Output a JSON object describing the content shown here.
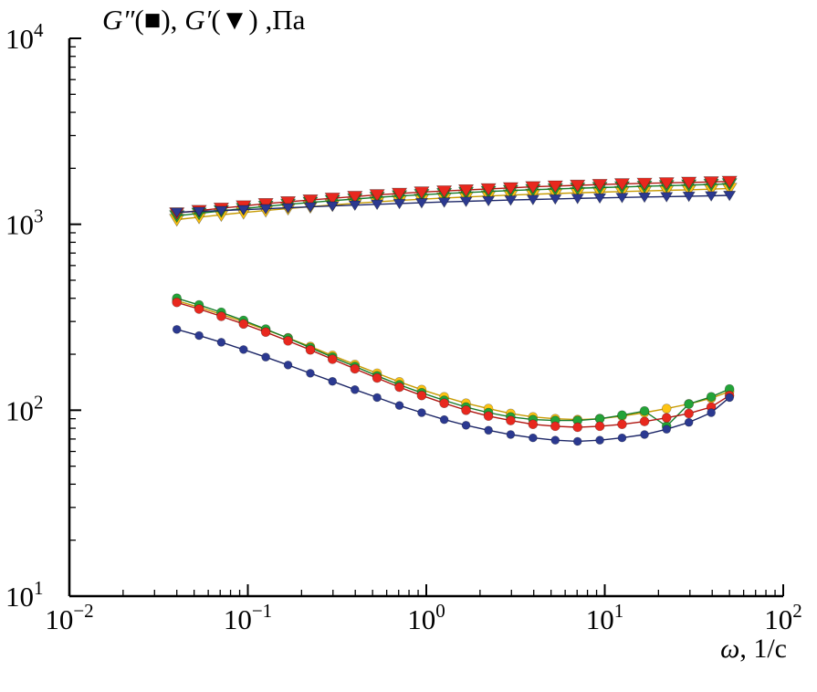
{
  "title": {
    "part1": "G″",
    "part2": "(■), ",
    "part3": "G′",
    "part4": "(▼) ,Па"
  },
  "axis": {
    "x_label_omega": "ω",
    "x_label_rest": ", 1/с"
  },
  "colors": {
    "red": "#e8281e",
    "green": "#23a338",
    "yellow": "#fdc413",
    "blue": "#2b3990",
    "axis": "#000000"
  },
  "chart_data": {
    "type": "line",
    "scale": "log-log",
    "grid": false,
    "legend": "none (markers explained in title)",
    "title": "G″(■), G′(▼) ,Па",
    "xlabel": "ω, 1/с",
    "ylabel": "",
    "xlim": [
      0.01,
      100
    ],
    "ylim": [
      10,
      10000
    ],
    "x_range_exp": [
      -2,
      2
    ],
    "y_range_exp": [
      1,
      4
    ],
    "x_tick_exponents": [
      -2,
      -1,
      0,
      1,
      2
    ],
    "y_tick_exponents": [
      1,
      2,
      3,
      4
    ],
    "x": [
      0.04,
      0.0533,
      0.071,
      0.0946,
      0.126,
      0.168,
      0.224,
      0.298,
      0.398,
      0.53,
      0.707,
      0.942,
      1.26,
      1.67,
      2.23,
      2.97,
      3.96,
      5.28,
      7.04,
      9.38,
      12.5,
      16.7,
      22.2,
      29.6,
      39.5,
      50.0
    ],
    "series": [
      {
        "key": "g-prime-yellow",
        "name": "G′ (yellow)",
        "marker": "triangle-down",
        "color": "#fdc413",
        "line_color": "#c79a00",
        "size": 8,
        "values": [
          1060,
          1092,
          1124,
          1156,
          1186,
          1215,
          1243,
          1270,
          1296,
          1320,
          1343,
          1364,
          1384,
          1402,
          1420,
          1436,
          1450,
          1464,
          1477,
          1489,
          1500,
          1511,
          1522,
          1533,
          1545,
          1558
        ]
      },
      {
        "key": "g-prime-green",
        "name": "G′ (green)",
        "marker": "triangle-down",
        "color": "#23a338",
        "line_color": "#157a28",
        "size": 8,
        "values": [
          1110,
          1145,
          1180,
          1215,
          1248,
          1280,
          1310,
          1340,
          1368,
          1395,
          1420,
          1442,
          1462,
          1482,
          1500,
          1518,
          1534,
          1548,
          1562,
          1575,
          1588,
          1600,
          1612,
          1624,
          1636,
          1650
        ]
      },
      {
        "key": "g-prime-red",
        "name": "G′ (red)",
        "marker": "triangle-down",
        "color": "#e8281e",
        "line_color": "#b01510",
        "size": 8,
        "values": [
          1150,
          1185,
          1220,
          1255,
          1290,
          1320,
          1350,
          1380,
          1410,
          1440,
          1465,
          1490,
          1510,
          1530,
          1550,
          1570,
          1590,
          1605,
          1620,
          1635,
          1650,
          1660,
          1670,
          1680,
          1690,
          1700
        ]
      },
      {
        "key": "g-prime-blue",
        "name": "G′ (blue)",
        "marker": "triangle-down",
        "color": "#2b3990",
        "line_color": "#1c2667",
        "size": 6.5,
        "values": [
          1160,
          1172,
          1185,
          1198,
          1212,
          1226,
          1240,
          1254,
          1268,
          1281,
          1294,
          1306,
          1318,
          1329,
          1340,
          1350,
          1360,
          1369,
          1378,
          1386,
          1394,
          1401,
          1408,
          1415,
          1422,
          1430
        ]
      },
      {
        "key": "g-doubleprime-yellow",
        "name": "G″ (yellow)",
        "marker": "circle",
        "color": "#fdc413",
        "line_color": "#c79a00",
        "size": 5,
        "values": [
          388,
          358,
          328,
          299,
          271,
          245,
          220,
          197,
          176,
          158,
          142,
          129,
          118,
          109,
          102,
          96,
          92,
          90,
          89,
          90,
          93,
          97,
          102,
          108,
          116,
          126
        ]
      },
      {
        "key": "g-doubleprime-green",
        "name": "G″ (green)",
        "marker": "circle",
        "color": "#23a338",
        "line_color": "#157a28",
        "size": 5,
        "values": [
          400,
          368,
          336,
          304,
          273,
          244,
          217,
          193,
          172,
          153,
          137,
          124,
          113,
          104,
          97,
          92,
          89,
          88,
          88,
          90,
          94,
          99,
          82,
          108,
          118,
          130
        ]
      },
      {
        "key": "g-doubleprime-red",
        "name": "G″ (red)",
        "marker": "circle",
        "color": "#e8281e",
        "line_color": "#b01510",
        "size": 5,
        "values": [
          380,
          350,
          320,
          291,
          263,
          236,
          211,
          188,
          167,
          149,
          133,
          120,
          109,
          100,
          93,
          88,
          84,
          82,
          81,
          82,
          84,
          87,
          91,
          96,
          104,
          120
        ]
      },
      {
        "key": "g-doubleprime-blue",
        "name": "G″ (blue)",
        "marker": "circle",
        "color": "#2b3990",
        "line_color": "#1c2667",
        "size": 4.5,
        "values": [
          272,
          252,
          232,
          212,
          193,
          175,
          158,
          143,
          129,
          117,
          106,
          97,
          89,
          83,
          78,
          74,
          71,
          69,
          68,
          69,
          71,
          74,
          79,
          86,
          97,
          117
        ]
      }
    ]
  }
}
